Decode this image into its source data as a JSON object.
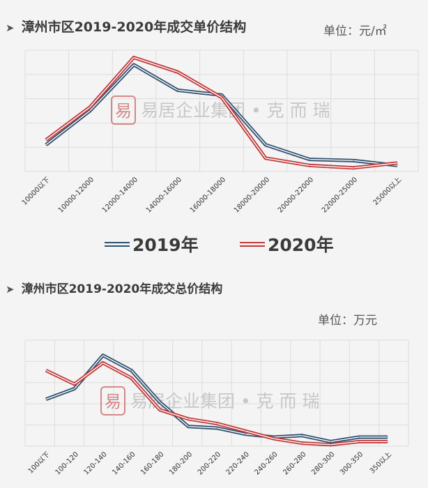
{
  "charts": [
    {
      "title": "漳州市区2019-2020年成交单价结构",
      "unit": "单位：元/㎡",
      "watermark": "易居企业集团 • 克 而 瑞",
      "legend": [
        "2019年",
        "2020年"
      ],
      "colors": {
        "2019年": "#2e4f6e",
        "2020年": "#c0393b"
      }
    },
    {
      "title": "漳州市区2019-2020年成交总价结构",
      "unit": "单位：万元",
      "watermark": "易居企业集团 • 克 而 瑞"
    }
  ],
  "chart_data": [
    {
      "type": "line",
      "categories": [
        "10000以下",
        "10000-12000",
        "12000-14000",
        "14000-16000",
        "16000-18000",
        "18000-20000",
        "20000-22000",
        "22000-25000",
        "25000以上"
      ],
      "series": [
        {
          "name": "2019年",
          "values": [
            22,
            50,
            88,
            67,
            63,
            22,
            10,
            9,
            5
          ]
        },
        {
          "name": "2020年",
          "values": [
            26,
            53,
            94,
            82,
            61,
            11,
            5,
            3,
            7
          ]
        }
      ],
      "ylim": [
        0,
        100
      ],
      "grid": true,
      "legend": "bottom"
    },
    {
      "type": "line",
      "categories": [
        "100以下",
        "100-120",
        "120-140",
        "140-160",
        "160-180",
        "180-200",
        "200-220",
        "220-240",
        "240-260",
        "260-280",
        "280-300",
        "300-350",
        "350以上"
      ],
      "series": [
        {
          "name": "2019年",
          "values": [
            31,
            38,
            60,
            50,
            29,
            13,
            12,
            8,
            6,
            7,
            3,
            6,
            6
          ]
        },
        {
          "name": "2020年",
          "values": [
            50,
            41,
            55,
            45,
            24,
            18,
            15,
            10,
            5,
            2,
            1,
            3,
            3
          ]
        }
      ],
      "ylim": [
        0,
        70
      ],
      "grid": true,
      "legend": "none"
    }
  ]
}
